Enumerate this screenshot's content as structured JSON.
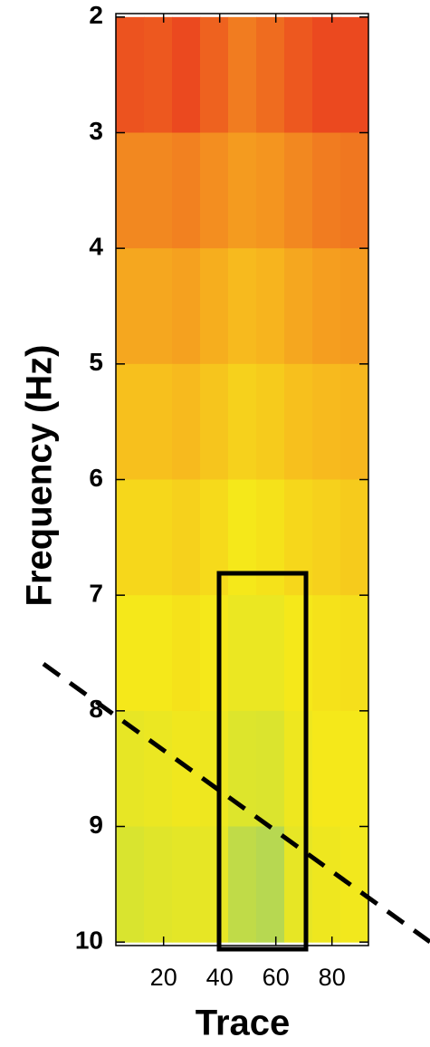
{
  "chart_data": {
    "type": "heatmap",
    "xlabel": "Trace",
    "ylabel": "Frequency (Hz)",
    "xlim": [
      3,
      93
    ],
    "ylim": [
      1.97,
      10.03
    ],
    "y_inverted": true,
    "xticks": [
      20,
      40,
      60,
      80
    ],
    "yticks": [
      2,
      3,
      4,
      5,
      6,
      7,
      8,
      9,
      10
    ],
    "xbins": [
      3,
      13,
      23,
      33,
      43,
      53,
      63,
      73,
      83,
      93
    ],
    "ybins": [
      2,
      3,
      4,
      5,
      6,
      7,
      8,
      9,
      10
    ],
    "colormap": [
      "#3f9fc8",
      "#8cc87a",
      "#d8e430",
      "#f5e81a",
      "#f7b81e",
      "#f28420",
      "#e8301e"
    ],
    "z": [
      [
        0.93,
        0.92,
        0.95,
        0.9,
        0.85,
        0.88,
        0.92,
        0.95,
        0.95
      ],
      [
        0.82,
        0.82,
        0.84,
        0.8,
        0.76,
        0.78,
        0.82,
        0.85,
        0.86
      ],
      [
        0.72,
        0.72,
        0.74,
        0.7,
        0.66,
        0.68,
        0.72,
        0.75,
        0.76
      ],
      [
        0.64,
        0.64,
        0.66,
        0.62,
        0.58,
        0.6,
        0.64,
        0.66,
        0.67
      ],
      [
        0.56,
        0.56,
        0.58,
        0.55,
        0.5,
        0.52,
        0.56,
        0.58,
        0.6
      ],
      [
        0.5,
        0.5,
        0.52,
        0.5,
        0.44,
        0.44,
        0.5,
        0.52,
        0.53
      ],
      [
        0.42,
        0.44,
        0.47,
        0.46,
        0.36,
        0.35,
        0.46,
        0.5,
        0.5
      ],
      [
        0.34,
        0.38,
        0.4,
        0.42,
        0.28,
        0.26,
        0.42,
        0.46,
        0.48
      ]
    ]
  }
}
